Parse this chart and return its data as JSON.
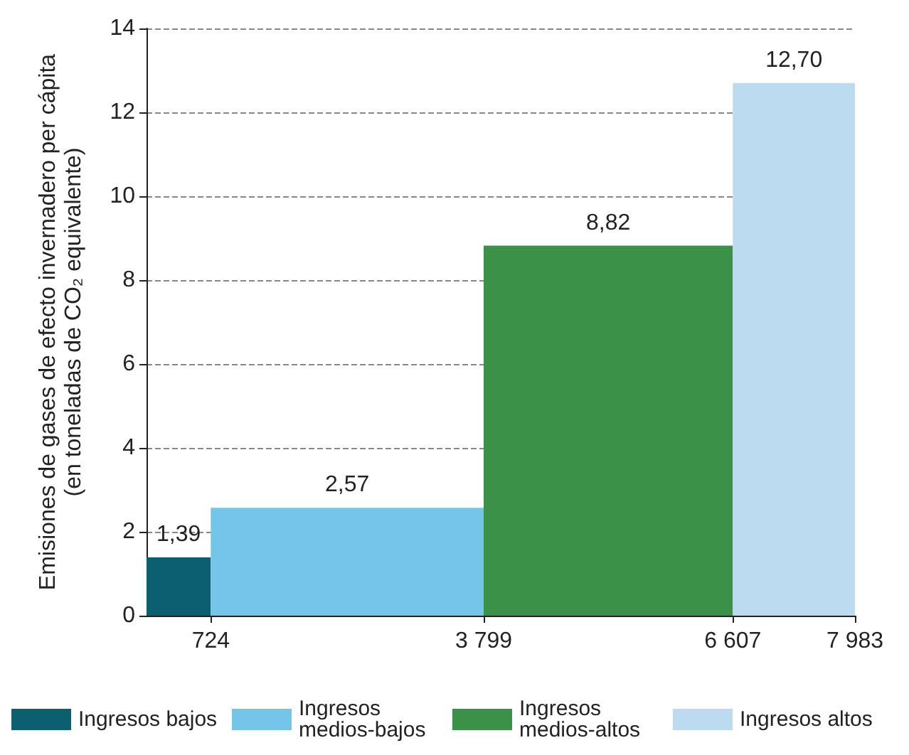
{
  "chart_data": {
    "type": "histogram",
    "ylabel": "Emisiones de gases de efecto invernadero per cápita (en toneladas de CO₂ equivalente)",
    "bins": [
      0,
      724,
      3799,
      6607,
      7983
    ],
    "series": [
      {
        "name": "Ingresos bajos",
        "color": "#0b5f6e",
        "values": [
          1.39,
          null,
          null,
          null
        ],
        "value_labels": [
          "1,39",
          null,
          null,
          null
        ]
      },
      {
        "name": "Ingresos medios-bajos",
        "color": "#75c5e8",
        "values": [
          null,
          2.57,
          null,
          null
        ],
        "value_labels": [
          null,
          "2,57",
          null,
          null
        ]
      },
      {
        "name": "Ingresos medios-altos",
        "color": "#3a9147",
        "values": [
          null,
          null,
          8.82,
          null
        ],
        "value_labels": [
          null,
          null,
          "8,82",
          null
        ]
      },
      {
        "name": "Ingresos altos",
        "color": "#bcdaf0",
        "values": [
          null,
          null,
          null,
          12.7
        ],
        "value_labels": [
          null,
          null,
          null,
          "12,70"
        ]
      }
    ],
    "xlim": [
      0,
      7983
    ],
    "xticks": [
      724,
      {
        "value": 3799,
        "label": "3 799"
      },
      {
        "value": 6607,
        "label": "6 607"
      },
      {
        "value": 7983,
        "label": "7 983"
      }
    ],
    "ylim": [
      0,
      14
    ],
    "yticks": [
      0,
      2,
      4,
      6,
      8,
      10,
      12,
      14
    ],
    "grid": "y",
    "legend": "bottom"
  }
}
